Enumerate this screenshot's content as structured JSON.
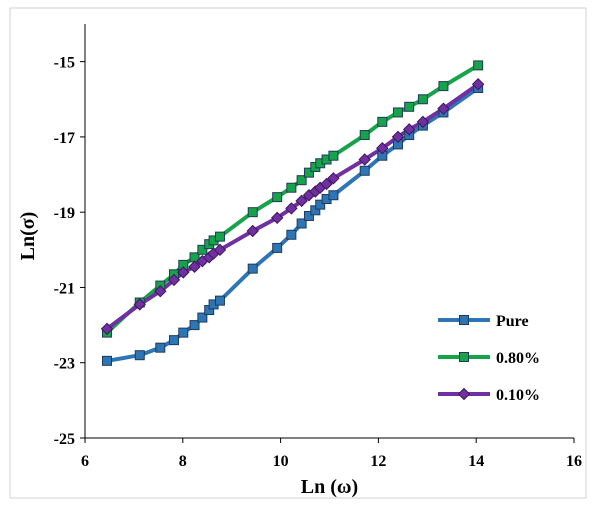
{
  "chart_data": {
    "type": "line",
    "title": "",
    "xlabel": "Ln (ω)",
    "ylabel": "Ln(σ)",
    "xlim": [
      6,
      16
    ],
    "ylim": [
      -25,
      -14
    ],
    "xticks": [
      6,
      8,
      10,
      12,
      14,
      16
    ],
    "yticks": [
      -15,
      -17,
      -19,
      -21,
      -23,
      -25
    ],
    "grid": false,
    "legend_position": "bottom-right",
    "series": [
      {
        "name": "Pure",
        "color": "#2e75b6",
        "marker": "square",
        "x": [
          6.45,
          7.12,
          7.54,
          7.82,
          8.01,
          8.24,
          8.4,
          8.54,
          8.63,
          8.76,
          9.43,
          9.93,
          10.22,
          10.43,
          10.58,
          10.71,
          10.81,
          10.94,
          11.08,
          11.72,
          12.08,
          12.4,
          12.63,
          12.91,
          13.33,
          14.04
        ],
        "y": [
          -22.95,
          -22.8,
          -22.6,
          -22.4,
          -22.2,
          -22.0,
          -21.8,
          -21.6,
          -21.45,
          -21.35,
          -20.5,
          -19.95,
          -19.6,
          -19.3,
          -19.1,
          -18.95,
          -18.8,
          -18.65,
          -18.55,
          -17.9,
          -17.5,
          -17.2,
          -16.95,
          -16.7,
          -16.35,
          -15.7
        ]
      },
      {
        "name": "0.80%",
        "color": "#17a34a",
        "marker": "square",
        "x": [
          6.45,
          7.12,
          7.54,
          7.82,
          8.01,
          8.24,
          8.4,
          8.54,
          8.63,
          8.76,
          9.43,
          9.93,
          10.22,
          10.43,
          10.58,
          10.71,
          10.81,
          10.94,
          11.08,
          11.72,
          12.08,
          12.4,
          12.63,
          12.91,
          13.33,
          14.04
        ],
        "y": [
          -22.2,
          -21.4,
          -20.95,
          -20.65,
          -20.4,
          -20.2,
          -20.0,
          -19.85,
          -19.75,
          -19.65,
          -19.0,
          -18.6,
          -18.35,
          -18.15,
          -17.95,
          -17.8,
          -17.7,
          -17.6,
          -17.5,
          -16.95,
          -16.6,
          -16.35,
          -16.2,
          -16.0,
          -15.65,
          -15.1
        ]
      },
      {
        "name": "0.10%",
        "color": "#7030a0",
        "marker": "diamond",
        "x": [
          6.45,
          7.12,
          7.54,
          7.82,
          8.01,
          8.24,
          8.4,
          8.54,
          8.63,
          8.76,
          9.43,
          9.93,
          10.22,
          10.43,
          10.58,
          10.71,
          10.81,
          10.94,
          11.08,
          11.72,
          12.08,
          12.4,
          12.63,
          12.91,
          13.33,
          14.04
        ],
        "y": [
          -22.1,
          -21.45,
          -21.1,
          -20.8,
          -20.6,
          -20.45,
          -20.3,
          -20.2,
          -20.1,
          -20.0,
          -19.5,
          -19.15,
          -18.9,
          -18.7,
          -18.55,
          -18.45,
          -18.35,
          -18.25,
          -18.1,
          -17.6,
          -17.3,
          -17.0,
          -16.8,
          -16.6,
          -16.25,
          -15.6
        ]
      }
    ]
  }
}
